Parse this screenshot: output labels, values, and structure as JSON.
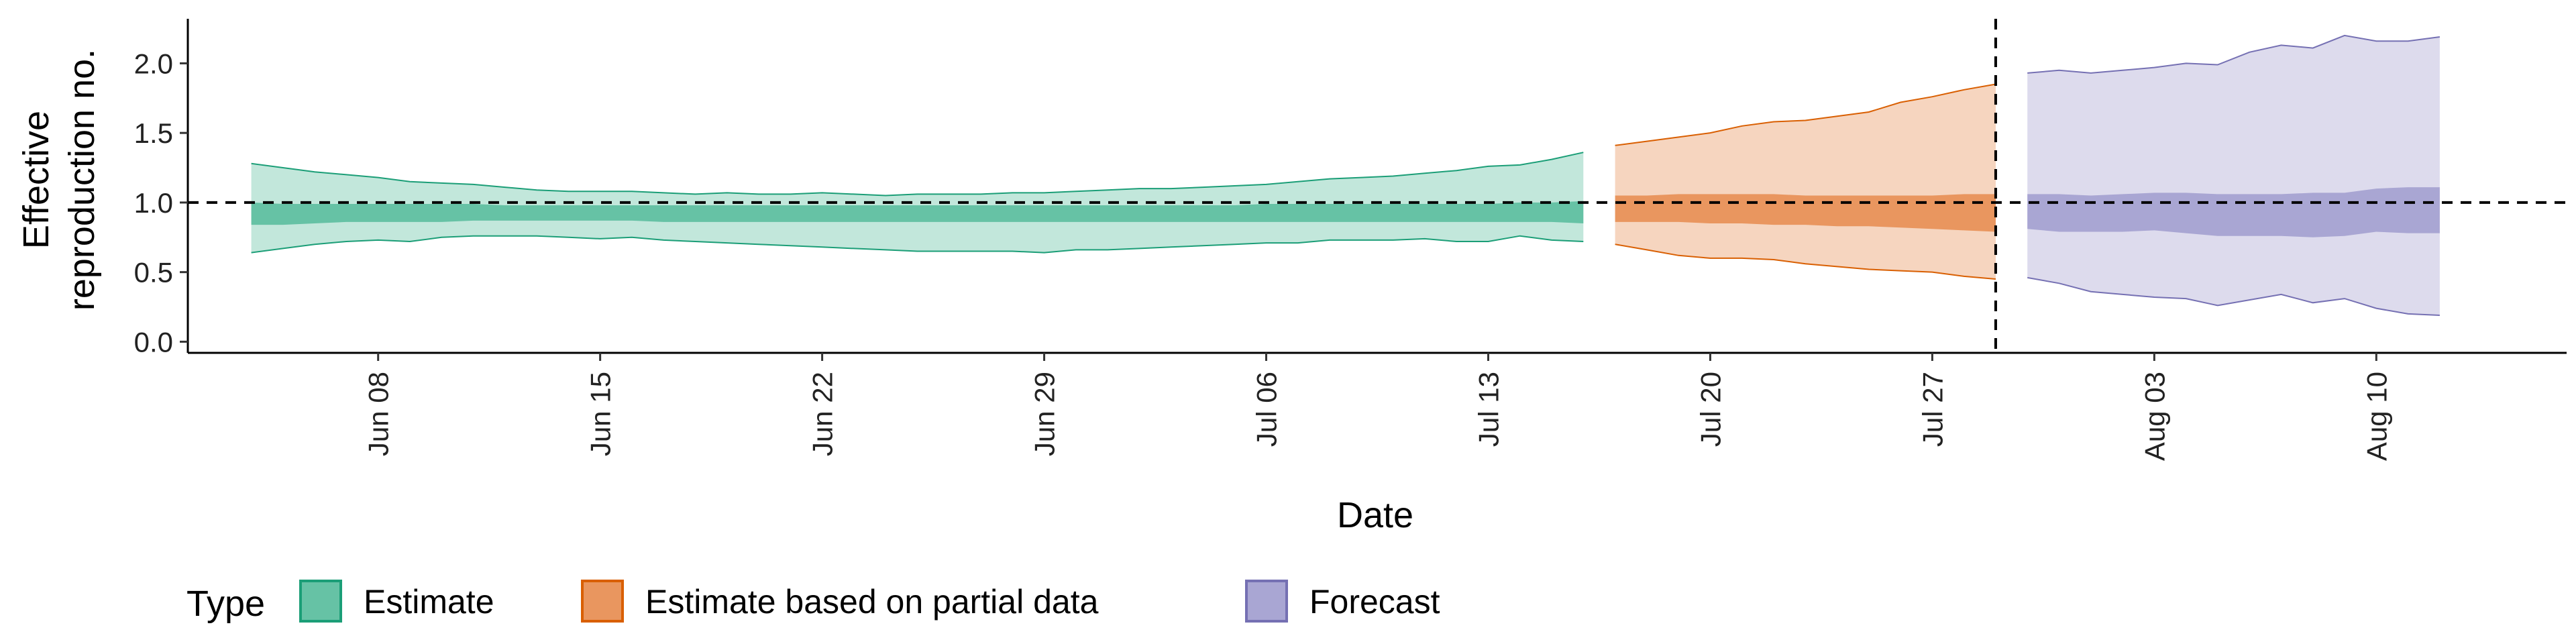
{
  "chart_data": {
    "type": "area",
    "xlabel": "Date",
    "ylabel_lines": [
      "Effective",
      "reproduction no."
    ],
    "ylim": [
      -0.08,
      2.32
    ],
    "y_ticks": [
      0.0,
      0.5,
      1.0,
      1.5,
      2.0
    ],
    "y_tick_labels": [
      "0.0",
      "0.5",
      "1.0",
      "1.5",
      "2.0"
    ],
    "x_range": [
      "2020-06-02",
      "2020-08-16"
    ],
    "x_ticks": [
      "2020-06-08",
      "2020-06-15",
      "2020-06-22",
      "2020-06-29",
      "2020-07-06",
      "2020-07-13",
      "2020-07-20",
      "2020-07-27",
      "2020-08-03",
      "2020-08-10"
    ],
    "x_tick_labels": [
      "Jun 08",
      "Jun 15",
      "Jun 22",
      "Jun 29",
      "Jul 06",
      "Jul 13",
      "Jul 20",
      "Jul 27",
      "Aug 03",
      "Aug 10"
    ],
    "reference_hline": 1.0,
    "reference_vline": "2020-07-29",
    "legend": {
      "title": "Type",
      "position": "bottom-left"
    },
    "series": [
      {
        "name": "Estimate",
        "color": "#1b9e77",
        "fill": "#66c2a5",
        "x": [
          "2020-06-04",
          "2020-06-05",
          "2020-06-06",
          "2020-06-07",
          "2020-06-08",
          "2020-06-09",
          "2020-06-10",
          "2020-06-11",
          "2020-06-12",
          "2020-06-13",
          "2020-06-14",
          "2020-06-15",
          "2020-06-16",
          "2020-06-17",
          "2020-06-18",
          "2020-06-19",
          "2020-06-20",
          "2020-06-21",
          "2020-06-22",
          "2020-06-23",
          "2020-06-24",
          "2020-06-25",
          "2020-06-26",
          "2020-06-27",
          "2020-06-28",
          "2020-06-29",
          "2020-06-30",
          "2020-07-01",
          "2020-07-02",
          "2020-07-03",
          "2020-07-04",
          "2020-07-05",
          "2020-07-06",
          "2020-07-07",
          "2020-07-08",
          "2020-07-09",
          "2020-07-10",
          "2020-07-11",
          "2020-07-12",
          "2020-07-13",
          "2020-07-14",
          "2020-07-15",
          "2020-07-16"
        ],
        "lower90": [
          0.64,
          0.67,
          0.7,
          0.72,
          0.73,
          0.72,
          0.75,
          0.76,
          0.76,
          0.76,
          0.75,
          0.74,
          0.75,
          0.73,
          0.72,
          0.71,
          0.7,
          0.69,
          0.68,
          0.67,
          0.66,
          0.65,
          0.65,
          0.65,
          0.65,
          0.64,
          0.66,
          0.66,
          0.67,
          0.68,
          0.69,
          0.7,
          0.71,
          0.71,
          0.73,
          0.73,
          0.73,
          0.74,
          0.72,
          0.72,
          0.76,
          0.73,
          0.72
        ],
        "upper90": [
          1.28,
          1.25,
          1.22,
          1.2,
          1.18,
          1.15,
          1.14,
          1.13,
          1.11,
          1.09,
          1.08,
          1.08,
          1.08,
          1.07,
          1.06,
          1.07,
          1.06,
          1.06,
          1.07,
          1.06,
          1.05,
          1.06,
          1.06,
          1.06,
          1.07,
          1.07,
          1.08,
          1.09,
          1.1,
          1.1,
          1.11,
          1.12,
          1.13,
          1.15,
          1.17,
          1.18,
          1.19,
          1.21,
          1.23,
          1.26,
          1.27,
          1.31,
          1.36
        ],
        "lower50": [
          0.84,
          0.84,
          0.85,
          0.86,
          0.86,
          0.86,
          0.86,
          0.87,
          0.87,
          0.87,
          0.87,
          0.87,
          0.87,
          0.86,
          0.86,
          0.86,
          0.86,
          0.86,
          0.86,
          0.86,
          0.86,
          0.86,
          0.86,
          0.86,
          0.86,
          0.86,
          0.86,
          0.86,
          0.86,
          0.86,
          0.86,
          0.86,
          0.86,
          0.86,
          0.86,
          0.86,
          0.86,
          0.86,
          0.86,
          0.86,
          0.86,
          0.86,
          0.85
        ],
        "upper50": [
          1.0,
          0.99,
          0.99,
          0.99,
          0.99,
          0.99,
          0.99,
          0.99,
          0.98,
          0.98,
          0.98,
          0.98,
          0.98,
          0.98,
          0.98,
          0.98,
          0.98,
          0.98,
          0.98,
          0.98,
          0.98,
          0.98,
          0.98,
          0.98,
          0.98,
          0.98,
          0.98,
          0.98,
          0.98,
          0.98,
          0.98,
          0.98,
          0.99,
          0.99,
          0.99,
          0.99,
          0.99,
          0.99,
          0.99,
          0.99,
          1.0,
          1.0,
          1.01
        ]
      },
      {
        "name": "Estimate based on partial data",
        "color": "#d95f02",
        "fill": "#e9965f",
        "x": [
          "2020-07-17",
          "2020-07-18",
          "2020-07-19",
          "2020-07-20",
          "2020-07-21",
          "2020-07-22",
          "2020-07-23",
          "2020-07-24",
          "2020-07-25",
          "2020-07-26",
          "2020-07-27",
          "2020-07-28",
          "2020-07-29"
        ],
        "lower90": [
          0.7,
          0.66,
          0.62,
          0.6,
          0.6,
          0.59,
          0.56,
          0.54,
          0.52,
          0.51,
          0.5,
          0.47,
          0.45
        ],
        "upper90": [
          1.41,
          1.44,
          1.47,
          1.5,
          1.55,
          1.58,
          1.59,
          1.62,
          1.65,
          1.72,
          1.76,
          1.81,
          1.85
        ],
        "lower50": [
          0.86,
          0.86,
          0.86,
          0.85,
          0.85,
          0.84,
          0.84,
          0.83,
          0.83,
          0.82,
          0.81,
          0.8,
          0.79
        ],
        "upper50": [
          1.05,
          1.05,
          1.06,
          1.06,
          1.06,
          1.06,
          1.05,
          1.05,
          1.05,
          1.05,
          1.05,
          1.06,
          1.06
        ]
      },
      {
        "name": "Forecast",
        "color": "#7570b3",
        "fill": "#a9a6d3",
        "x": [
          "2020-07-30",
          "2020-07-31",
          "2020-08-01",
          "2020-08-02",
          "2020-08-03",
          "2020-08-04",
          "2020-08-05",
          "2020-08-06",
          "2020-08-07",
          "2020-08-08",
          "2020-08-09",
          "2020-08-10",
          "2020-08-11",
          "2020-08-12"
        ],
        "lower90": [
          0.46,
          0.42,
          0.36,
          0.34,
          0.32,
          0.31,
          0.26,
          0.3,
          0.34,
          0.28,
          0.31,
          0.24,
          0.2,
          0.19
        ],
        "upper90": [
          1.93,
          1.95,
          1.93,
          1.95,
          1.97,
          2.0,
          1.99,
          2.08,
          2.13,
          2.11,
          2.2,
          2.16,
          2.16,
          2.19
        ],
        "lower50": [
          0.81,
          0.79,
          0.79,
          0.79,
          0.8,
          0.78,
          0.76,
          0.76,
          0.76,
          0.75,
          0.76,
          0.79,
          0.78,
          0.78
        ],
        "upper50": [
          1.06,
          1.06,
          1.05,
          1.06,
          1.07,
          1.07,
          1.06,
          1.06,
          1.06,
          1.07,
          1.07,
          1.1,
          1.11,
          1.11
        ]
      }
    ]
  }
}
